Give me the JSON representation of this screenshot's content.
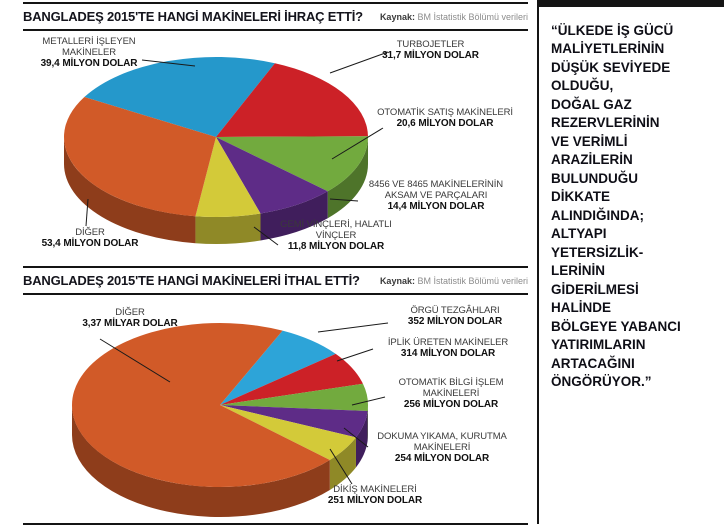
{
  "chart_data": [
    {
      "type": "pie",
      "title": "BANGLADEŞ 2015'TE HANGİ MAKİNELERİ İHRAÇ ETTİ?",
      "source_label": "Kaynak:",
      "source_text": "BM İstatistik Bölümü verileri",
      "unit": "milyon dolar",
      "start_angle_deg": 300,
      "slices": [
        {
          "label": "METALLERİ İŞLEYEN MAKİNELER",
          "value": 39.4,
          "value_label": "39,4 MİLYON DOLAR",
          "color": "#2598cb"
        },
        {
          "label": "TURBOJETLER",
          "value": 31.7,
          "value_label": "31,7 MİLYON DOLAR",
          "color": "#cc2127"
        },
        {
          "label": "OTOMATİK SATIŞ MAKİNELERİ",
          "value": 20.6,
          "value_label": "20,6 MİLYON DOLAR",
          "color": "#72aa3e"
        },
        {
          "label": "8456 VE 8465 MAKİNELERİNİN AKSAM VE PARÇALARI",
          "value": 14.4,
          "value_label": "14,4 MİLYON DOLAR",
          "color": "#5e2c87"
        },
        {
          "label": "GEMİ VİNÇLERİ, HALATLI VİNÇLER",
          "value": 11.8,
          "value_label": "11,8 MİLYON DOLAR",
          "color": "#d3ca39"
        },
        {
          "label": "DİĞER",
          "value": 53.4,
          "value_label": "53,4 MİLYON DOLAR",
          "color": "#d15a28"
        }
      ]
    },
    {
      "type": "pie",
      "title": "BANGLADEŞ 2015'TE HANGİ MAKİNELERİ İTHAL ETTİ?",
      "source_label": "Kaynak:",
      "source_text": "BM İstatistik Bölümü verileri",
      "unit": "milyon dolar",
      "start_angle_deg": 25,
      "slices": [
        {
          "label": "ÖRGÜ TEZGÂHLARI",
          "value": 352,
          "value_label": "352 MİLYON DOLAR",
          "color": "#2da4d8"
        },
        {
          "label": "İPLİK ÜRETEN MAKİNELER",
          "value": 314,
          "value_label": "314 MİLYON DOLAR",
          "color": "#cc2127"
        },
        {
          "label": "OTOMATİK BİLGİ İŞLEM MAKİNELERİ",
          "value": 256,
          "value_label": "256 MİLYON DOLAR",
          "color": "#72aa3e"
        },
        {
          "label": "DOKUMA YIKAMA, KURUTMA MAKİNELERİ",
          "value": 254,
          "value_label": "254 MİLYON DOLAR",
          "color": "#5e2c87"
        },
        {
          "label": "DİKİŞ MAKİNELERİ",
          "value": 251,
          "value_label": "251 MİLYON DOLAR",
          "color": "#d3ca39"
        },
        {
          "label": "DİĞER",
          "value": 3370,
          "value_label": "3,37 MİLYAR DOLAR",
          "color": "#d15a28"
        }
      ]
    }
  ],
  "quote_panel": {
    "text": "“ÜLKEDE İŞ GÜCÜ\nMALİYETLERİNİN\nDÜŞÜK SEVİYEDE\nOLDUĞU,\nDOĞAL GAZ\nREZERVLERİNİN\nVE VERİMLİ\nARAZİLERİN\nBULUNDUĞU\nDİKKATE\nALINDIĞINDA;\nALTYAPI\nYETERSİZLİK-\nLERİNİN\nGİDERİLMESİ\nHALİNDE\nBÖLGEYE YABANCI\nYATIRIMLARIN\nARTACAĞINI\nÖNGÖRÜYOR.”"
  },
  "colors": {
    "rule": "#141414",
    "header_text": "#14141c",
    "label_text": "#3a3a3a",
    "value_text": "#101010",
    "source_text": "#8c8c8c"
  }
}
